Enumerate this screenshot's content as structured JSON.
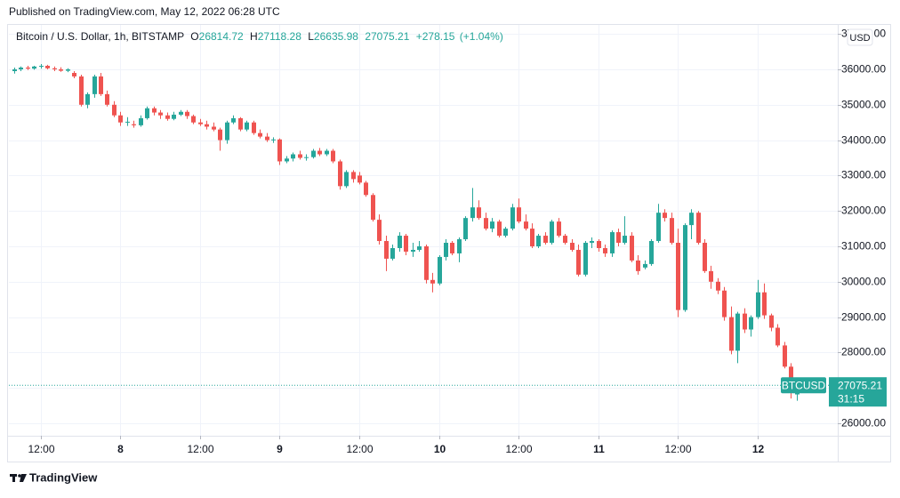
{
  "header": {
    "published": "Published on TradingView.com, May 12, 2022 06:28 UTC"
  },
  "footer": {
    "brand": "TradingView"
  },
  "chart_data": {
    "type": "candlestick",
    "title": "Bitcoin / U.S. Dollar, 1h, BITSTAMP",
    "ohlc_prefixes": [
      "O",
      "H",
      "L"
    ],
    "change": "+278.15",
    "change_pct": "(+1.04%)",
    "symbol": "BTCUSD",
    "currency": "USD",
    "countdown": "31:15",
    "up_color": "#26a69a",
    "down_color": "#ef5350",
    "x": [
      8,
      9,
      10,
      11,
      12,
      13,
      14,
      15,
      16,
      17,
      18,
      19,
      20,
      21,
      22,
      23,
      24,
      25,
      26,
      27,
      28,
      29,
      30,
      31,
      32,
      33,
      34,
      35,
      36,
      37,
      38,
      39,
      40,
      41,
      42,
      43,
      44,
      45,
      46,
      47,
      48,
      49,
      50,
      51,
      52,
      53,
      54,
      55,
      56,
      57,
      58,
      59,
      60,
      61,
      62,
      63,
      64,
      65,
      66,
      67,
      68,
      69,
      70,
      71,
      72,
      73,
      74,
      75,
      76,
      77,
      78,
      79,
      80,
      81,
      82,
      83,
      84,
      85,
      86,
      87,
      88,
      89,
      90,
      91,
      92,
      93,
      94,
      95,
      96,
      97,
      98,
      99,
      100,
      101,
      102,
      103,
      104,
      105,
      106,
      107,
      108,
      109,
      110,
      111,
      112,
      113,
      114,
      115,
      116,
      117,
      118,
      119,
      120,
      121,
      122,
      123,
      124,
      125,
      126
    ],
    "open": [
      35950,
      36000,
      36050,
      36020,
      36080,
      36100,
      36030,
      36000,
      35960,
      35900,
      35800,
      35000,
      35300,
      35800,
      35300,
      35000,
      34700,
      34500,
      34450,
      34420,
      34620,
      34900,
      34780,
      34700,
      34600,
      34720,
      34800,
      34680,
      34500,
      34450,
      34380,
      34300,
      34000,
      34500,
      34620,
      34300,
      34500,
      34200,
      34100,
      34000,
      34020,
      33400,
      33480,
      33600,
      33500,
      33520,
      33700,
      33600,
      33700,
      33400,
      32700,
      33100,
      33000,
      32800,
      32450,
      31750,
      31150,
      30650,
      30950,
      31300,
      30850,
      30900,
      31000,
      30050,
      29950,
      30700,
      31100,
      30800,
      31200,
      31800,
      32100,
      31800,
      31500,
      31700,
      31300,
      31500,
      32100,
      31700,
      31500,
      31000,
      31300,
      31100,
      31700,
      31300,
      31100,
      30900,
      30200,
      31100,
      31150,
      30950,
      30800,
      31400,
      31100,
      31300,
      30600,
      30400,
      30500,
      31150,
      31950,
      31800,
      31100,
      29200,
      31600,
      31950,
      31100,
      30300,
      30000,
      29750,
      29000,
      28050,
      29100,
      28650,
      29000,
      29700,
      29050,
      28700,
      28200,
      27600,
      26814.72
    ],
    "high": [
      36050,
      36080,
      36100,
      36100,
      36150,
      36130,
      36080,
      36060,
      36030,
      35950,
      35850,
      35350,
      35850,
      35900,
      35400,
      35100,
      34800,
      34650,
      34550,
      34700,
      34950,
      34950,
      34850,
      34780,
      34800,
      34850,
      34850,
      34720,
      34600,
      34550,
      34500,
      34350,
      34550,
      34700,
      34650,
      34550,
      34550,
      34300,
      34200,
      34080,
      34050,
      33550,
      33650,
      33700,
      33600,
      33750,
      33780,
      33750,
      33750,
      33450,
      33150,
      33150,
      33100,
      32850,
      32500,
      31900,
      31300,
      31050,
      31400,
      31350,
      31100,
      31150,
      31050,
      30250,
      30750,
      31200,
      31150,
      31250,
      31850,
      32650,
      32300,
      31950,
      31800,
      31750,
      31550,
      32200,
      32350,
      31900,
      31650,
      31350,
      31400,
      31750,
      31800,
      31350,
      31200,
      31050,
      31150,
      31250,
      31200,
      31050,
      31450,
      31500,
      31850,
      31400,
      30750,
      30600,
      31200,
      32200,
      32050,
      31950,
      31500,
      31650,
      32050,
      32000,
      31200,
      30450,
      30100,
      29850,
      29300,
      29150,
      29250,
      29050,
      30050,
      29950,
      29100,
      28800,
      28300,
      27700,
      27118.28
    ],
    "low": [
      35880,
      35950,
      35980,
      35990,
      36020,
      36000,
      35950,
      35930,
      35920,
      35750,
      34950,
      34900,
      35200,
      35250,
      34950,
      34650,
      34400,
      34400,
      34350,
      34380,
      34580,
      34700,
      34600,
      34550,
      34560,
      34680,
      34600,
      34450,
      34400,
      34300,
      34250,
      33700,
      33900,
      34450,
      34250,
      34250,
      34150,
      34050,
      33950,
      33920,
      33300,
      33350,
      33400,
      33450,
      33420,
      33480,
      33550,
      33550,
      33350,
      32600,
      32650,
      32800,
      32750,
      32400,
      31700,
      31050,
      30300,
      30600,
      30850,
      30750,
      30700,
      30850,
      29950,
      29700,
      29900,
      30600,
      30750,
      30550,
      31150,
      31700,
      31750,
      31450,
      31400,
      31250,
      31250,
      31450,
      31650,
      31450,
      30950,
      30950,
      31050,
      31050,
      31250,
      31050,
      30850,
      30150,
      30150,
      30950,
      30850,
      30700,
      30700,
      31000,
      31050,
      30550,
      30200,
      30350,
      30450,
      31100,
      31700,
      31050,
      29000,
      29150,
      31200,
      31050,
      30250,
      29800,
      29650,
      28900,
      27950,
      27700,
      28550,
      28450,
      28950,
      28950,
      28600,
      28150,
      27550,
      26700,
      26635.98
    ],
    "close": [
      36000,
      36050,
      36020,
      36080,
      36100,
      36030,
      36000,
      35960,
      36000,
      35800,
      35000,
      35300,
      35800,
      35300,
      35000,
      34700,
      34500,
      34520,
      34420,
      34620,
      34900,
      34780,
      34700,
      34600,
      34720,
      34800,
      34680,
      34500,
      34450,
      34380,
      34300,
      34000,
      34500,
      34620,
      34300,
      34500,
      34200,
      34100,
      34000,
      34020,
      33400,
      33480,
      33600,
      33500,
      33520,
      33700,
      33600,
      33700,
      33400,
      32700,
      33100,
      32900,
      32800,
      32450,
      31750,
      31150,
      30650,
      30950,
      31300,
      30850,
      30900,
      31000,
      30050,
      29950,
      30700,
      31100,
      30800,
      31200,
      31800,
      32100,
      31800,
      31500,
      31700,
      31300,
      31500,
      32100,
      31700,
      31500,
      31000,
      31300,
      31100,
      31700,
      31300,
      31100,
      30900,
      30200,
      31100,
      31150,
      30950,
      30800,
      31400,
      31100,
      31300,
      30600,
      30300,
      30500,
      31150,
      31950,
      31800,
      31100,
      29200,
      31600,
      31950,
      31100,
      30300,
      30000,
      29750,
      29000,
      28050,
      29100,
      28650,
      29000,
      29700,
      29050,
      28700,
      28200,
      27600,
      26900,
      27075.21
    ],
    "xlim": [
      7.2,
      132.1
    ],
    "xticks": [
      {
        "value": 12,
        "label": "12:00"
      },
      {
        "value": 24,
        "label": "8"
      },
      {
        "value": 36,
        "label": "12:00"
      },
      {
        "value": 48,
        "label": "9"
      },
      {
        "value": 60,
        "label": "12:00"
      },
      {
        "value": 72,
        "label": "10"
      },
      {
        "value": 84,
        "label": "12:00"
      },
      {
        "value": 96,
        "label": "11"
      },
      {
        "value": 108,
        "label": "12:00"
      },
      {
        "value": 120,
        "label": "12"
      }
    ],
    "ylim": [
      25648,
      37256
    ],
    "yticks": [
      {
        "value": 26000,
        "label": "26000.00"
      },
      {
        "value": 27000,
        "label": "27000.00"
      },
      {
        "value": 28000,
        "label": "28000.00"
      },
      {
        "value": 29000,
        "label": "29000.00"
      },
      {
        "value": 30000,
        "label": "30000.00"
      },
      {
        "value": 31000,
        "label": "31000.00"
      },
      {
        "value": 32000,
        "label": "32000.00"
      },
      {
        "value": 33000,
        "label": "33000.00"
      },
      {
        "value": 34000,
        "label": "34000.00"
      },
      {
        "value": 35000,
        "label": "35000.00"
      },
      {
        "value": 36000,
        "label": "36000.00"
      },
      {
        "value": 37000,
        "label": "37000.00"
      }
    ],
    "grid": true
  }
}
